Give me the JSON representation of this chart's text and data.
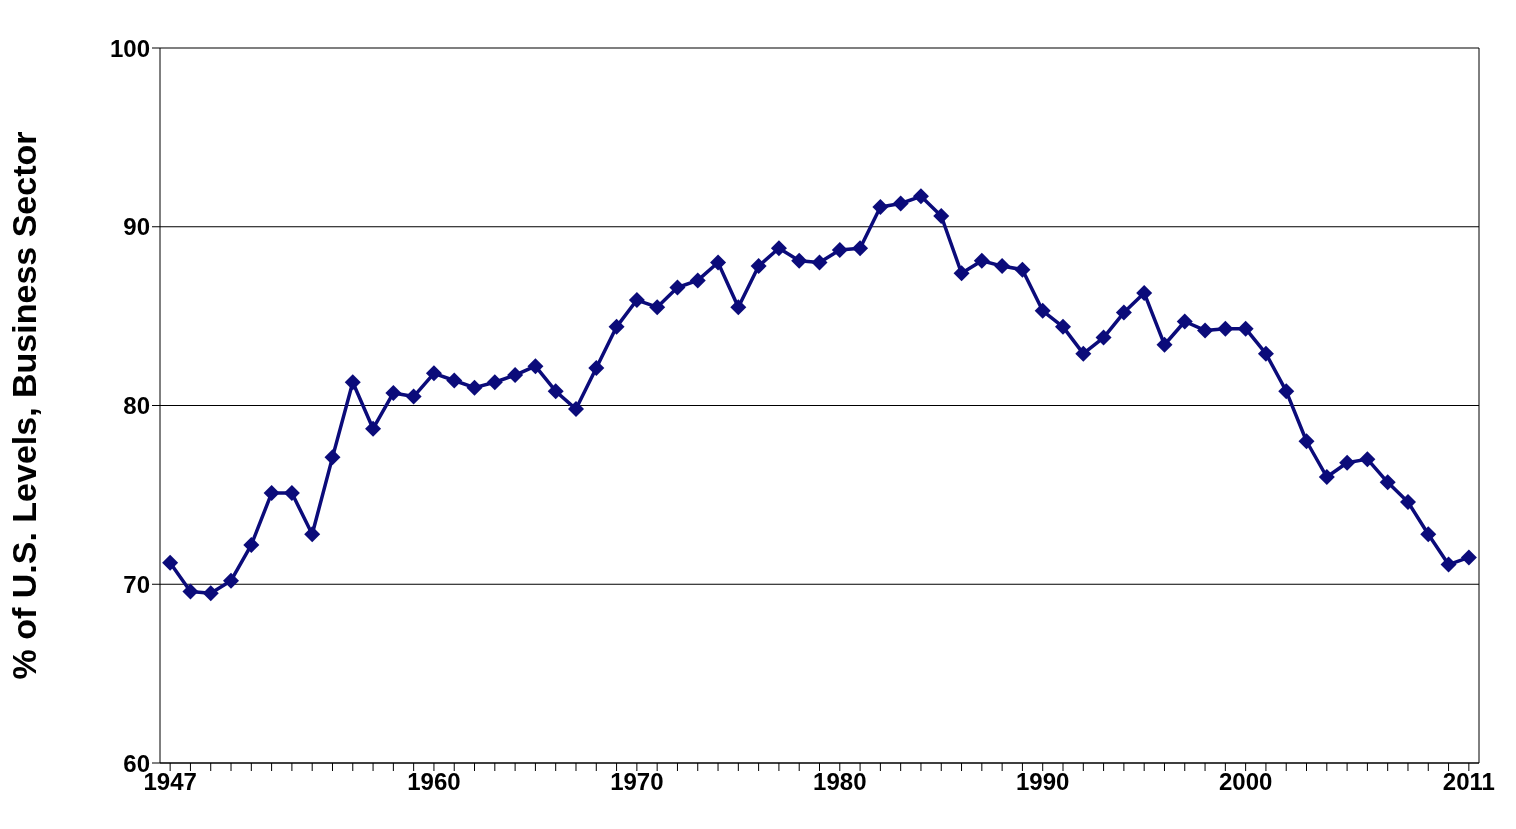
{
  "chart_data": {
    "type": "line",
    "ylabel": "% of U.S. Levels, Business Sector",
    "x": [
      1947,
      1948,
      1949,
      1950,
      1951,
      1952,
      1953,
      1954,
      1955,
      1956,
      1957,
      1958,
      1959,
      1960,
      1961,
      1962,
      1963,
      1964,
      1965,
      1966,
      1967,
      1968,
      1969,
      1970,
      1971,
      1972,
      1973,
      1974,
      1975,
      1976,
      1977,
      1978,
      1979,
      1980,
      1981,
      1982,
      1983,
      1984,
      1985,
      1986,
      1987,
      1988,
      1989,
      1990,
      1991,
      1992,
      1993,
      1994,
      1995,
      1996,
      1997,
      1998,
      1999,
      2000,
      2001,
      2002,
      2003,
      2004,
      2005,
      2006,
      2007,
      2008,
      2009,
      2010,
      2011
    ],
    "series": [
      {
        "color": "#0b0b7a",
        "values": [
          71.2,
          69.6,
          69.5,
          70.2,
          72.2,
          75.1,
          75.1,
          72.8,
          77.1,
          81.3,
          78.7,
          80.7,
          80.5,
          81.8,
          81.4,
          81.0,
          81.3,
          81.7,
          82.2,
          80.8,
          79.8,
          82.1,
          84.4,
          85.9,
          85.5,
          86.6,
          87.0,
          88.0,
          85.5,
          87.8,
          88.8,
          88.1,
          88.0,
          88.7,
          88.8,
          91.1,
          91.3,
          91.7,
          90.6,
          87.4,
          88.1,
          87.8,
          87.6,
          85.3,
          84.4,
          82.9,
          83.8,
          85.2,
          86.3,
          83.4,
          84.7,
          84.2,
          84.3,
          84.3,
          82.9,
          80.8,
          78.0,
          76.0,
          76.8,
          77.0,
          75.7,
          74.6,
          72.8,
          71.1,
          71.5
        ]
      }
    ],
    "xlim": [
      1946.5,
      2011.5
    ],
    "xticks": [
      1947,
      {
        "value": 1948,
        "label": null
      },
      {
        "value": 1949,
        "label": null
      },
      {
        "value": 1950,
        "label": null
      },
      {
        "value": 1951,
        "label": null
      },
      {
        "value": 1952,
        "label": null
      },
      {
        "value": 1953,
        "label": null
      },
      {
        "value": 1954,
        "label": null
      },
      {
        "value": 1955,
        "label": null
      },
      {
        "value": 1956,
        "label": null
      },
      {
        "value": 1957,
        "label": null
      },
      {
        "value": 1958,
        "label": null
      },
      {
        "value": 1959,
        "label": null
      },
      1960,
      {
        "value": 1961,
        "label": null
      },
      {
        "value": 1962,
        "label": null
      },
      {
        "value": 1963,
        "label": null
      },
      {
        "value": 1964,
        "label": null
      },
      {
        "value": 1965,
        "label": null
      },
      {
        "value": 1966,
        "label": null
      },
      {
        "value": 1967,
        "label": null
      },
      {
        "value": 1968,
        "label": null
      },
      {
        "value": 1969,
        "label": null
      },
      1970,
      {
        "value": 1971,
        "label": null
      },
      {
        "value": 1972,
        "label": null
      },
      {
        "value": 1973,
        "label": null
      },
      {
        "value": 1974,
        "label": null
      },
      {
        "value": 1975,
        "label": null
      },
      {
        "value": 1976,
        "label": null
      },
      {
        "value": 1977,
        "label": null
      },
      {
        "value": 1978,
        "label": null
      },
      {
        "value": 1979,
        "label": null
      },
      1980,
      {
        "value": 1981,
        "label": null
      },
      {
        "value": 1982,
        "label": null
      },
      {
        "value": 1983,
        "label": null
      },
      {
        "value": 1984,
        "label": null
      },
      {
        "value": 1985,
        "label": null
      },
      {
        "value": 1986,
        "label": null
      },
      {
        "value": 1987,
        "label": null
      },
      {
        "value": 1988,
        "label": null
      },
      {
        "value": 1989,
        "label": null
      },
      1990,
      {
        "value": 1991,
        "label": null
      },
      {
        "value": 1992,
        "label": null
      },
      {
        "value": 1993,
        "label": null
      },
      {
        "value": 1994,
        "label": null
      },
      {
        "value": 1995,
        "label": null
      },
      {
        "value": 1996,
        "label": null
      },
      {
        "value": 1997,
        "label": null
      },
      {
        "value": 1998,
        "label": null
      },
      {
        "value": 1999,
        "label": null
      },
      2000,
      {
        "value": 2001,
        "label": null
      },
      {
        "value": 2002,
        "label": null
      },
      {
        "value": 2003,
        "label": null
      },
      {
        "value": 2004,
        "label": null
      },
      {
        "value": 2005,
        "label": null
      },
      {
        "value": 2006,
        "label": null
      },
      {
        "value": 2007,
        "label": null
      },
      {
        "value": 2008,
        "label": null
      },
      {
        "value": 2009,
        "label": null
      },
      {
        "value": 2010,
        "label": null
      },
      2011
    ],
    "ylim": [
      60,
      100
    ],
    "yticks": [
      60,
      70,
      80,
      90,
      100
    ],
    "grid": "y",
    "marker": "diamond",
    "line_style": "solid"
  }
}
